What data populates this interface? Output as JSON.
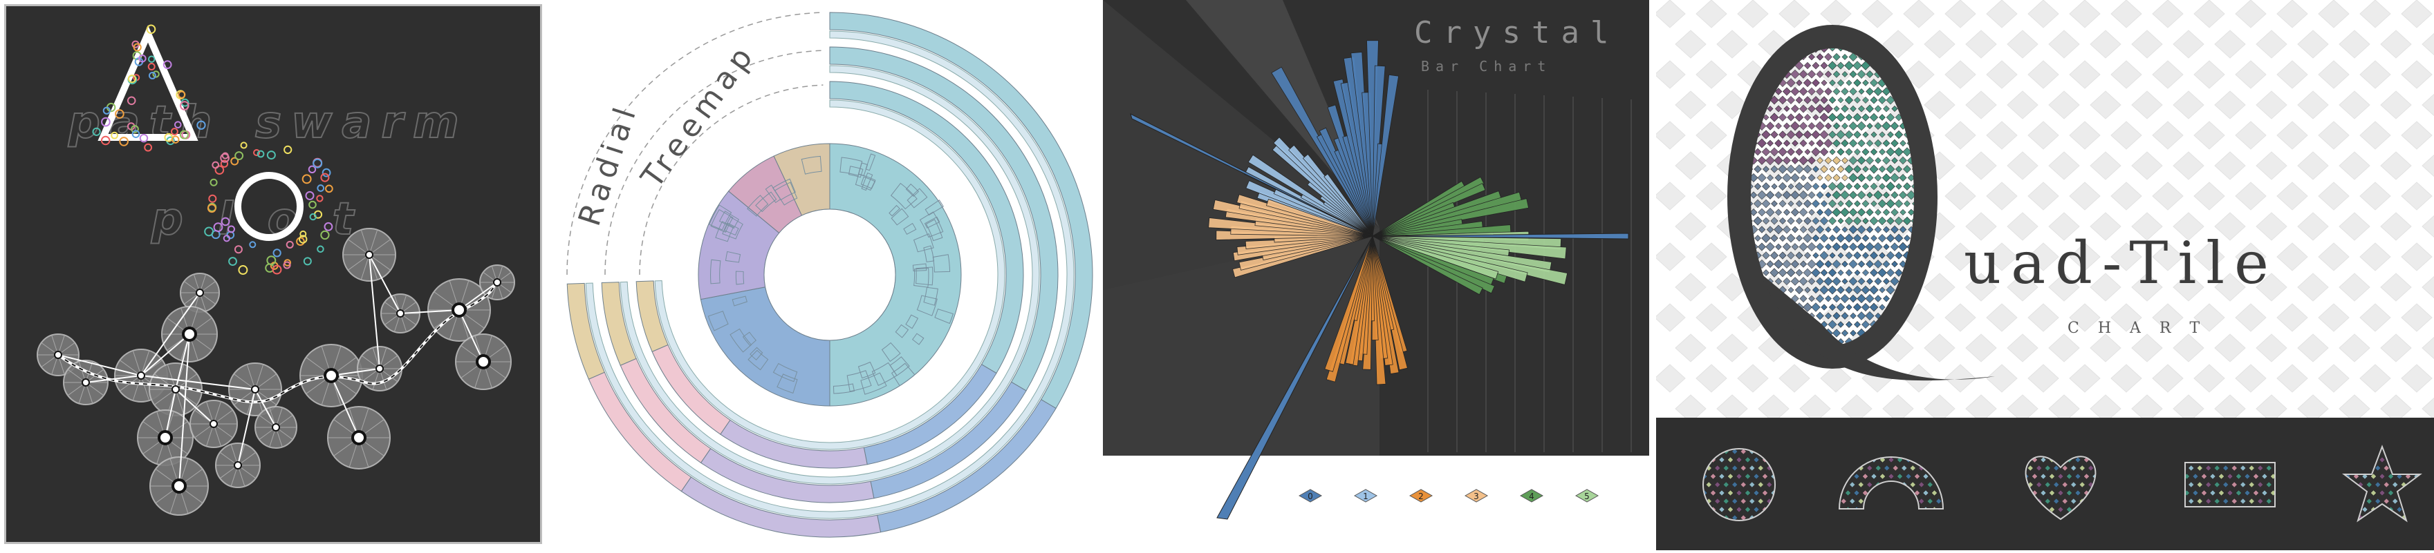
{
  "panels": {
    "path_swarm": {
      "title_words": [
        "path",
        "swarm",
        "plot"
      ]
    },
    "radial_treemap": {
      "title_words": [
        "Radial",
        "Treemap"
      ]
    },
    "crystal_bar": {
      "title": "Crystal",
      "subtitle": "Bar Chart",
      "legend": [
        {
          "label": "0",
          "color": "#4f7fb5"
        },
        {
          "label": "1",
          "color": "#9ec3e6"
        },
        {
          "label": "2",
          "color": "#e8913a"
        },
        {
          "label": "3",
          "color": "#f3c08a"
        },
        {
          "label": "4",
          "color": "#5e9e58"
        },
        {
          "label": "5",
          "color": "#a8d59a"
        }
      ]
    },
    "quad_tile": {
      "title_big": "Q",
      "title_rest": "uad-Tile",
      "subtitle": "C H A R T",
      "shapes": [
        "circle",
        "rainbow",
        "heart",
        "rectangle",
        "star"
      ]
    }
  },
  "colors": {
    "dark_bg": "#2f2f2f",
    "tile_purple": "#7a4f78",
    "tile_green": "#3f8f7a",
    "tile_blue": "#3f6f98",
    "tile_teal": "#6fb3c8"
  }
}
